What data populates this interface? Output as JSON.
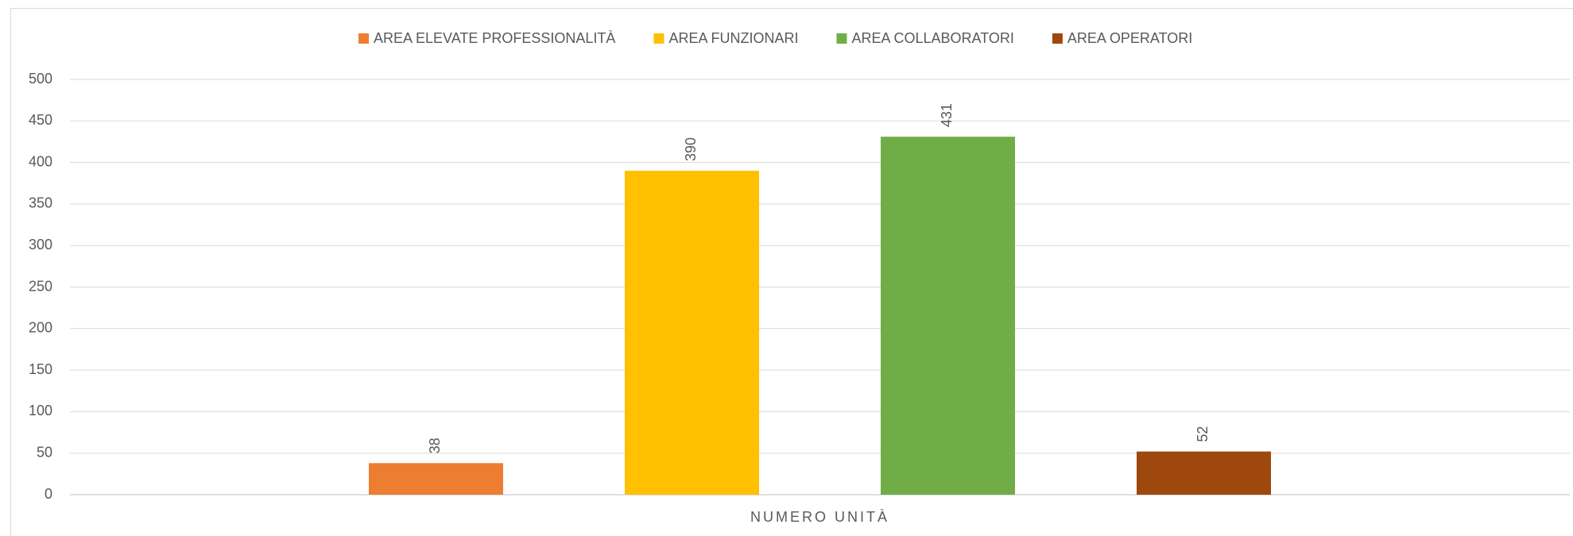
{
  "chart_data": {
    "type": "bar",
    "categories": [
      "NUMERO UNITÀ"
    ],
    "series": [
      {
        "name": "AREA ELEVATE PROFESSIONALITÀ",
        "color": "#ed7d31",
        "values": [
          38
        ]
      },
      {
        "name": "AREA FUNZIONARI",
        "color": "#ffc000",
        "values": [
          390
        ]
      },
      {
        "name": "AREA COLLABORATORI",
        "color": "#70ad47",
        "values": [
          431
        ]
      },
      {
        "name": "AREA OPERATORI",
        "color": "#9e480e",
        "values": [
          52
        ]
      }
    ],
    "ylim": [
      0,
      500
    ],
    "yticks": [
      0,
      50,
      100,
      150,
      200,
      250,
      300,
      350,
      400,
      450,
      500
    ],
    "grid": true,
    "legend": "top"
  }
}
